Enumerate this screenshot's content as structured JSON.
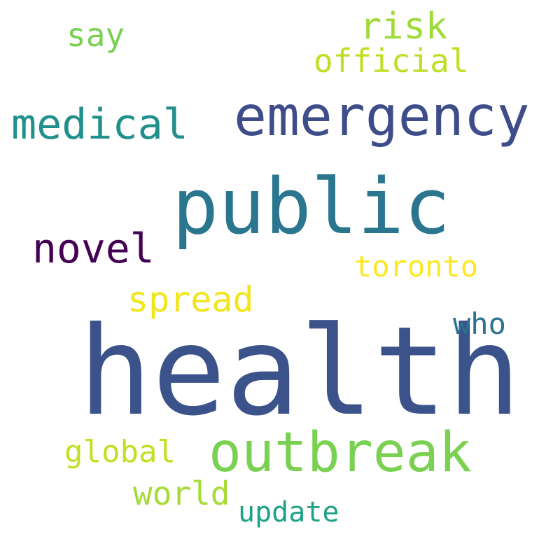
{
  "words": [
    {
      "key": "health",
      "text": "health",
      "color": "#3b528b"
    },
    {
      "key": "public",
      "text": "public",
      "color": "#2a768e"
    },
    {
      "key": "emergency",
      "text": "emergency",
      "color": "#3e4c8a"
    },
    {
      "key": "outbreak",
      "text": "outbreak",
      "color": "#7ad151"
    },
    {
      "key": "medical",
      "text": "medical",
      "color": "#21908d"
    },
    {
      "key": "novel",
      "text": "novel",
      "color": "#440154"
    },
    {
      "key": "risk",
      "text": "risk",
      "color": "#a0da39"
    },
    {
      "key": "spread",
      "text": "spread",
      "color": "#f1e51d"
    },
    {
      "key": "official",
      "text": "official",
      "color": "#bddf26"
    },
    {
      "key": "say",
      "text": "say",
      "color": "#7ad151"
    },
    {
      "key": "toronto",
      "text": "toronto",
      "color": "#fde725"
    },
    {
      "key": "who",
      "text": "who",
      "color": "#2c728e"
    },
    {
      "key": "global",
      "text": "global",
      "color": "#c2df23"
    },
    {
      "key": "world",
      "text": "world",
      "color": "#a5db36"
    },
    {
      "key": "update",
      "text": "update",
      "color": "#1fa187"
    }
  ]
}
